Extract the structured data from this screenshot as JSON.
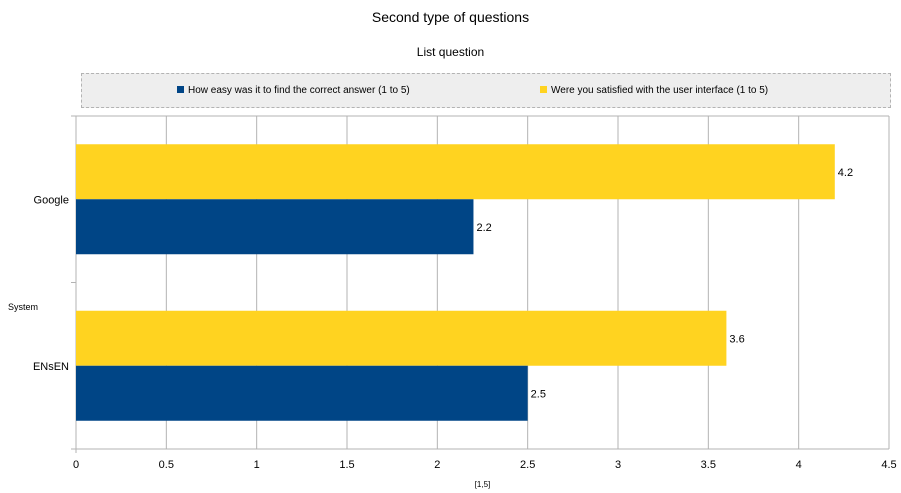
{
  "chart_data": {
    "type": "bar",
    "orientation": "horizontal",
    "title": "Second  type of questions",
    "subtitle": "List question",
    "xlabel": "[1,5]",
    "ylabel": "System",
    "xlim": [
      0,
      4.5
    ],
    "xticks": [
      0,
      0.5,
      1,
      1.5,
      2,
      2.5,
      3,
      3.5,
      4,
      4.5
    ],
    "xtick_labels": [
      "0",
      "0.5",
      "1",
      "1.5",
      "2",
      "2.5",
      "3",
      "3.5",
      "4",
      "4.5"
    ],
    "grid": true,
    "legend_position": "top",
    "categories": [
      "Google",
      "ENsEN"
    ],
    "series": [
      {
        "name": "How easy was it to find the correct answer (1 to 5)",
        "color": "#004586",
        "values": [
          2.2,
          2.5
        ],
        "labels": [
          "2.2",
          "2.5"
        ]
      },
      {
        "name": "Were you satisfied with the user interface (1 to 5)",
        "color": "#ffd320",
        "values": [
          4.2,
          3.6
        ],
        "labels": [
          "4.2",
          "3.6"
        ]
      }
    ]
  }
}
